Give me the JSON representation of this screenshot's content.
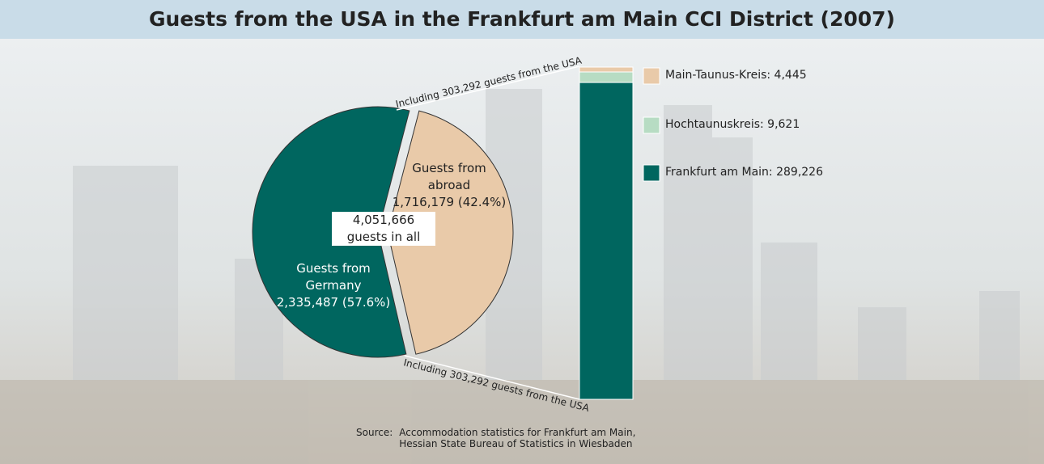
{
  "title": "Guests from the USA in the Frankfurt am Main CCI District (2007)",
  "chart_data": [
    {
      "type": "pie",
      "categories": [
        "Guests from Germany",
        "Guests from abroad"
      ],
      "values": [
        2335487,
        1716179
      ],
      "value_labels": [
        "2,335,487",
        "1,716,179"
      ],
      "percentages": [
        57.6,
        42.4
      ],
      "percent_labels": [
        "(57.6%)",
        "(42.4%)"
      ],
      "colors": [
        "#00665f",
        "#e9caa9"
      ],
      "total_label": "4,051,666 guests in all",
      "annotations": [
        "Including 303,292 guests from the USA",
        "Including 303,292 guests from the USA"
      ]
    },
    {
      "type": "stacked-bar",
      "series": [
        {
          "name": "Main-Taunus-Kreis: 4,445",
          "color": "#e9caa9",
          "values": [
            4445
          ]
        },
        {
          "name": "Hochtaunuskreis: 9,621",
          "color": "#b7dcc3",
          "values": [
            9621
          ]
        },
        {
          "name": "Frankfurt am Main: 289,226",
          "color": "#00665f",
          "values": [
            289226
          ]
        }
      ]
    }
  ],
  "source": {
    "label": "Source:",
    "lines": [
      "Accommodation statistics for Frankfurt am Main,",
      "Hessian State Bureau of Statistics in Wiesbaden"
    ]
  }
}
